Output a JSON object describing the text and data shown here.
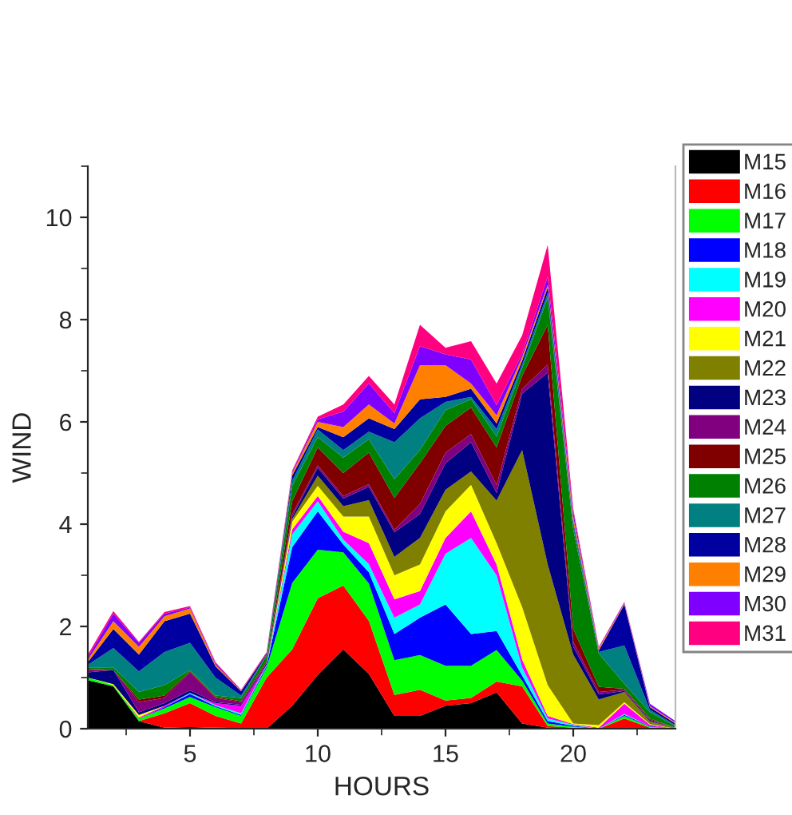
{
  "chart_data": {
    "type": "area",
    "stacked": true,
    "xlabel": "HOURS",
    "ylabel": "WIND",
    "x": [
      1,
      2,
      3,
      4,
      5,
      6,
      7,
      8,
      9,
      10,
      11,
      12,
      13,
      14,
      15,
      16,
      17,
      18,
      19,
      20,
      21,
      22,
      23,
      24
    ],
    "xlim": [
      1,
      24
    ],
    "ylim": [
      0,
      11
    ],
    "xticks": [
      5,
      10,
      15,
      20
    ],
    "yticks": [
      0,
      2,
      4,
      6,
      8,
      10
    ],
    "legend": "right",
    "grid": false,
    "series": [
      {
        "name": "M15",
        "color": "#000000",
        "values": [
          0.95,
          0.83,
          0.15,
          0.02,
          0.03,
          0.02,
          0.01,
          0,
          0.45,
          1.05,
          1.55,
          1.07,
          0.25,
          0.25,
          0.45,
          0.5,
          0.71,
          0.1,
          0.02,
          0,
          0,
          0,
          0,
          0
        ]
      },
      {
        "name": "M16",
        "color": "#ff0000",
        "values": [
          0,
          0,
          0,
          0.28,
          0.47,
          0.23,
          0.09,
          1.0,
          1.1,
          1.5,
          1.25,
          1.04,
          0.41,
          0.51,
          0.1,
          0.1,
          0.21,
          0.73,
          0.03,
          0.02,
          0,
          0.2,
          0.02,
          0
        ]
      },
      {
        "name": "M17",
        "color": "#00ff00",
        "values": [
          0.05,
          0.02,
          0.05,
          0.1,
          0.12,
          0.17,
          0.15,
          0.2,
          1.3,
          0.95,
          0.65,
          0.73,
          0.68,
          0.68,
          0.68,
          0.63,
          0.62,
          0.11,
          0.05,
          0.02,
          0,
          0.05,
          0.02,
          0
        ]
      },
      {
        "name": "M18",
        "color": "#0000ff",
        "values": [
          0,
          0,
          0,
          0.02,
          0.06,
          0.02,
          0.02,
          0.03,
          0.7,
          0.75,
          0.15,
          0.22,
          0.51,
          0.73,
          1.2,
          0.62,
          0.37,
          0.1,
          0.05,
          0.02,
          0,
          0.02,
          0.01,
          0
        ]
      },
      {
        "name": "M19",
        "color": "#00ffff",
        "values": [
          0,
          0,
          0,
          0,
          0.02,
          0.02,
          0.03,
          0.02,
          0.25,
          0.2,
          0.1,
          0.16,
          0.32,
          0.26,
          0.99,
          1.88,
          1.09,
          0.16,
          0.05,
          0.02,
          0,
          0.02,
          0,
          0
        ]
      },
      {
        "name": "M20",
        "color": "#ff00ff",
        "values": [
          0,
          0,
          0.02,
          0.03,
          0,
          0.04,
          0.15,
          0,
          0.1,
          0.1,
          0.15,
          0.41,
          0.36,
          0.26,
          0.31,
          0.52,
          0.21,
          0.15,
          0.05,
          0.01,
          0.02,
          0.2,
          0.03,
          0
        ]
      },
      {
        "name": "M21",
        "color": "#ffff00",
        "values": [
          0,
          0.02,
          0.05,
          0,
          0,
          0,
          0,
          0,
          0.15,
          0.2,
          0.3,
          0.52,
          0.47,
          0.52,
          0.52,
          0.52,
          0.42,
          1.03,
          0.6,
          0.01,
          0.05,
          0.03,
          0.01,
          0
        ]
      },
      {
        "name": "M22",
        "color": "#808000",
        "values": [
          0,
          0,
          0,
          0,
          0,
          0,
          0,
          0,
          0.05,
          0.2,
          0.2,
          0.32,
          0.36,
          0.52,
          0.42,
          0.26,
          0.83,
          3.07,
          2.36,
          1.35,
          0.5,
          0.2,
          0.05,
          0.02
        ]
      },
      {
        "name": "M23",
        "color": "#000080",
        "values": [
          0.1,
          0.28,
          0.05,
          0.05,
          0.05,
          0.02,
          0.02,
          0.03,
          0.05,
          0.15,
          0.15,
          0.26,
          0.48,
          0.47,
          0.52,
          0.57,
          0.15,
          1.1,
          3.75,
          0.15,
          0.1,
          0.02,
          0.02,
          0
        ]
      },
      {
        "name": "M24",
        "color": "#800080",
        "values": [
          0.05,
          0,
          0.2,
          0.1,
          0.35,
          0.08,
          0.05,
          0.02,
          0.05,
          0.05,
          0.05,
          0.05,
          0.05,
          0.2,
          0.21,
          0.16,
          0.16,
          0.1,
          0.16,
          0.1,
          0.05,
          0.02,
          0.02,
          0
        ]
      },
      {
        "name": "M25",
        "color": "#800000",
        "values": [
          0.02,
          0,
          0.05,
          0.05,
          0.02,
          0.02,
          0.02,
          0.03,
          0.25,
          0.35,
          0.45,
          0.62,
          0.62,
          0.79,
          0.52,
          0.52,
          0.73,
          0.25,
          0.78,
          0.25,
          0.1,
          0.02,
          0.02,
          0
        ]
      },
      {
        "name": "M26",
        "color": "#008000",
        "values": [
          0.03,
          0.05,
          0.15,
          0.2,
          0.03,
          0.03,
          0.06,
          0.1,
          0.3,
          0.2,
          0.3,
          0.26,
          0.37,
          0.26,
          0.31,
          0.16,
          0.21,
          0.15,
          0.52,
          1.95,
          0.65,
          0.1,
          0.12,
          0.03
        ]
      },
      {
        "name": "M27",
        "color": "#008080",
        "values": [
          0.05,
          0.38,
          0.4,
          0.65,
          0.53,
          0.35,
          0.05,
          0.02,
          0.1,
          0.15,
          0.15,
          0.15,
          0.72,
          0.62,
          0.16,
          0.05,
          0.15,
          0.07,
          0.1,
          0.1,
          0.03,
          0.75,
          0.05,
          0.02
        ]
      },
      {
        "name": "M28",
        "color": "#0000a0",
        "values": [
          0.05,
          0.37,
          0.33,
          0.6,
          0.57,
          0.22,
          0.08,
          0.02,
          0.1,
          0.05,
          0.25,
          0.26,
          0.26,
          0.37,
          0.1,
          0.16,
          0.11,
          0.08,
          0.11,
          0.05,
          0.03,
          0.8,
          0.05,
          0.03
        ]
      },
      {
        "name": "M29",
        "color": "#ff8000",
        "values": [
          0.05,
          0.15,
          0.15,
          0.1,
          0.1,
          0.03,
          0.01,
          0,
          0.05,
          0.1,
          0.2,
          0.27,
          0.11,
          0.67,
          0.62,
          0.1,
          0.16,
          0.07,
          0.05,
          0.1,
          0.04,
          0.02,
          0.02,
          0.02
        ]
      },
      {
        "name": "M30",
        "color": "#8000ff",
        "values": [
          0.05,
          0.15,
          0.08,
          0.05,
          0.02,
          0.03,
          0.01,
          0,
          0.03,
          0.05,
          0.3,
          0.41,
          0.2,
          0.37,
          0.21,
          0.47,
          0.2,
          0.06,
          0.16,
          0.1,
          0.02,
          0.02,
          0.05,
          0.03
        ]
      },
      {
        "name": "M31",
        "color": "#ff0080",
        "values": [
          0.05,
          0.05,
          0.02,
          0.03,
          0.03,
          0.02,
          0.01,
          0.03,
          0.02,
          0.05,
          0.14,
          0.15,
          0.17,
          0.42,
          0.13,
          0.36,
          0.42,
          0.36,
          0.62,
          0.05,
          0.01,
          0.01,
          0,
          0
        ]
      }
    ]
  }
}
